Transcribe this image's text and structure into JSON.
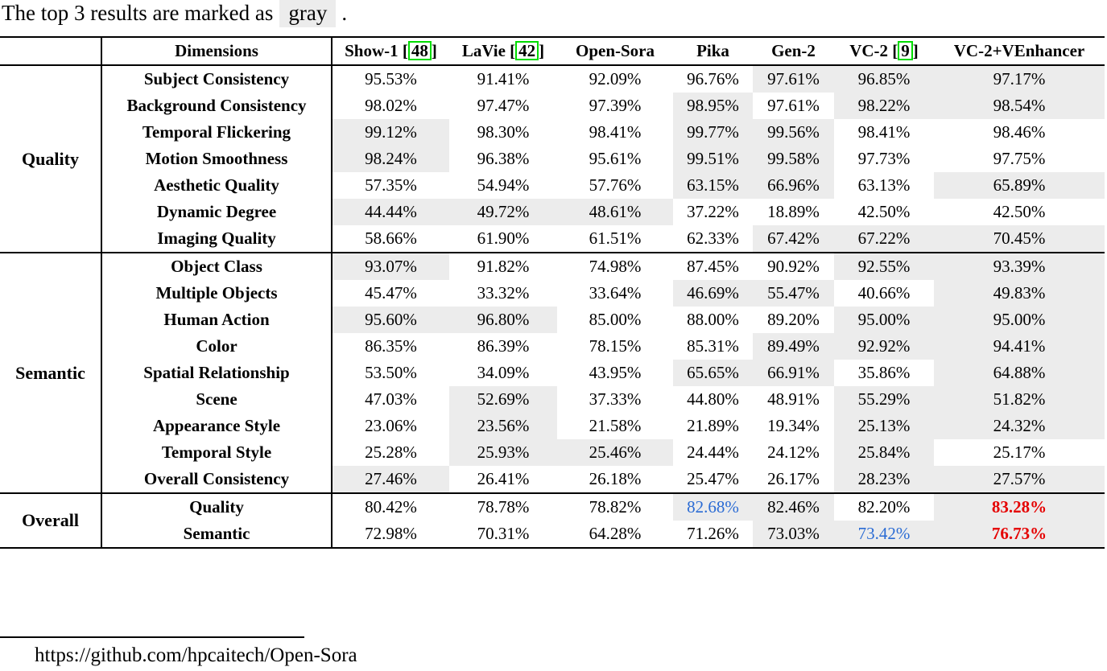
{
  "note": {
    "text": "The top 3 results are marked as",
    "highlight_word": "gray",
    "suffix": "."
  },
  "citation_format": {
    "open": "[",
    "close": "]"
  },
  "colors": {
    "highlight_gray": "#ececec",
    "best_red": "#e50000",
    "second_blue": "#2a6bd4",
    "citation_border_green": "#00dd00"
  },
  "table": {
    "header": {
      "corner": "",
      "dimensions_label": "Dimensions",
      "models": [
        {
          "label": "Show-1",
          "cite": "48"
        },
        {
          "label": "LaVie",
          "cite": "42"
        },
        {
          "label": "Open-Sora"
        },
        {
          "label": "Pika"
        },
        {
          "label": "Gen-2"
        },
        {
          "label": "VC-2",
          "cite": "9"
        },
        {
          "label": "VC-2+VEnhancer"
        }
      ]
    },
    "groups": [
      {
        "name": "Quality",
        "rows": [
          {
            "dimension": "Subject Consistency",
            "cells": [
              {
                "v": "95.53%"
              },
              {
                "v": "91.41%"
              },
              {
                "v": "92.09%"
              },
              {
                "v": "96.76%"
              },
              {
                "v": "97.61%",
                "hl": true
              },
              {
                "v": "96.85%",
                "hl": true
              },
              {
                "v": "97.17%",
                "hl": true
              }
            ]
          },
          {
            "dimension": "Background Consistency",
            "cells": [
              {
                "v": "98.02%"
              },
              {
                "v": "97.47%"
              },
              {
                "v": "97.39%"
              },
              {
                "v": "98.95%",
                "hl": true
              },
              {
                "v": "97.61%"
              },
              {
                "v": "98.22%",
                "hl": true
              },
              {
                "v": "98.54%",
                "hl": true
              }
            ]
          },
          {
            "dimension": "Temporal Flickering",
            "cells": [
              {
                "v": "99.12%",
                "hl": true
              },
              {
                "v": "98.30%"
              },
              {
                "v": "98.41%"
              },
              {
                "v": "99.77%",
                "hl": true
              },
              {
                "v": "99.56%",
                "hl": true
              },
              {
                "v": "98.41%"
              },
              {
                "v": "98.46%"
              }
            ]
          },
          {
            "dimension": "Motion Smoothness",
            "cells": [
              {
                "v": "98.24%",
                "hl": true
              },
              {
                "v": "96.38%"
              },
              {
                "v": "95.61%"
              },
              {
                "v": "99.51%",
                "hl": true
              },
              {
                "v": "99.58%",
                "hl": true
              },
              {
                "v": "97.73%"
              },
              {
                "v": "97.75%"
              }
            ]
          },
          {
            "dimension": "Aesthetic Quality",
            "cells": [
              {
                "v": "57.35%"
              },
              {
                "v": "54.94%"
              },
              {
                "v": "57.76%"
              },
              {
                "v": "63.15%",
                "hl": true
              },
              {
                "v": "66.96%",
                "hl": true
              },
              {
                "v": "63.13%"
              },
              {
                "v": "65.89%",
                "hl": true
              }
            ]
          },
          {
            "dimension": "Dynamic Degree",
            "cells": [
              {
                "v": "44.44%",
                "hl": true
              },
              {
                "v": "49.72%",
                "hl": true
              },
              {
                "v": "48.61%",
                "hl": true
              },
              {
                "v": "37.22%"
              },
              {
                "v": "18.89%"
              },
              {
                "v": "42.50%"
              },
              {
                "v": "42.50%"
              }
            ]
          },
          {
            "dimension": "Imaging Quality",
            "cells": [
              {
                "v": "58.66%"
              },
              {
                "v": "61.90%"
              },
              {
                "v": "61.51%"
              },
              {
                "v": "62.33%"
              },
              {
                "v": "67.42%",
                "hl": true
              },
              {
                "v": "67.22%",
                "hl": true
              },
              {
                "v": "70.45%",
                "hl": true
              }
            ]
          }
        ]
      },
      {
        "name": "Semantic",
        "rows": [
          {
            "dimension": "Object Class",
            "cells": [
              {
                "v": "93.07%",
                "hl": true
              },
              {
                "v": "91.82%"
              },
              {
                "v": "74.98%"
              },
              {
                "v": "87.45%"
              },
              {
                "v": "90.92%"
              },
              {
                "v": "92.55%",
                "hl": true
              },
              {
                "v": "93.39%",
                "hl": true
              }
            ]
          },
          {
            "dimension": "Multiple Objects",
            "cells": [
              {
                "v": "45.47%"
              },
              {
                "v": "33.32%"
              },
              {
                "v": "33.64%"
              },
              {
                "v": "46.69%",
                "hl": true
              },
              {
                "v": "55.47%",
                "hl": true
              },
              {
                "v": "40.66%"
              },
              {
                "v": "49.83%",
                "hl": true
              }
            ]
          },
          {
            "dimension": "Human Action",
            "cells": [
              {
                "v": "95.60%",
                "hl": true
              },
              {
                "v": "96.80%",
                "hl": true
              },
              {
                "v": "85.00%"
              },
              {
                "v": "88.00%"
              },
              {
                "v": "89.20%"
              },
              {
                "v": "95.00%",
                "hl": true
              },
              {
                "v": "95.00%",
                "hl": true
              }
            ]
          },
          {
            "dimension": "Color",
            "cells": [
              {
                "v": "86.35%"
              },
              {
                "v": "86.39%"
              },
              {
                "v": "78.15%"
              },
              {
                "v": "85.31%"
              },
              {
                "v": "89.49%",
                "hl": true
              },
              {
                "v": "92.92%",
                "hl": true
              },
              {
                "v": "94.41%",
                "hl": true
              }
            ]
          },
          {
            "dimension": "Spatial Relationship",
            "cells": [
              {
                "v": "53.50%"
              },
              {
                "v": "34.09%"
              },
              {
                "v": "43.95%"
              },
              {
                "v": "65.65%",
                "hl": true
              },
              {
                "v": "66.91%",
                "hl": true
              },
              {
                "v": "35.86%"
              },
              {
                "v": "64.88%",
                "hl": true
              }
            ]
          },
          {
            "dimension": "Scene",
            "cells": [
              {
                "v": "47.03%"
              },
              {
                "v": "52.69%",
                "hl": true
              },
              {
                "v": "37.33%"
              },
              {
                "v": "44.80%"
              },
              {
                "v": "48.91%"
              },
              {
                "v": "55.29%",
                "hl": true
              },
              {
                "v": "51.82%",
                "hl": true
              }
            ]
          },
          {
            "dimension": "Appearance Style",
            "cells": [
              {
                "v": "23.06%"
              },
              {
                "v": "23.56%",
                "hl": true
              },
              {
                "v": "21.58%"
              },
              {
                "v": "21.89%"
              },
              {
                "v": "19.34%"
              },
              {
                "v": "25.13%",
                "hl": true
              },
              {
                "v": "24.32%",
                "hl": true
              }
            ]
          },
          {
            "dimension": "Temporal Style",
            "cells": [
              {
                "v": "25.28%"
              },
              {
                "v": "25.93%",
                "hl": true
              },
              {
                "v": "25.46%",
                "hl": true
              },
              {
                "v": "24.44%"
              },
              {
                "v": "24.12%"
              },
              {
                "v": "25.84%",
                "hl": true
              },
              {
                "v": "25.17%"
              }
            ]
          },
          {
            "dimension": "Overall Consistency",
            "cells": [
              {
                "v": "27.46%",
                "hl": true
              },
              {
                "v": "26.41%"
              },
              {
                "v": "26.18%"
              },
              {
                "v": "25.47%"
              },
              {
                "v": "26.17%"
              },
              {
                "v": "28.23%",
                "hl": true
              },
              {
                "v": "27.57%",
                "hl": true
              }
            ]
          }
        ]
      },
      {
        "name": "Overall",
        "rows": [
          {
            "dimension": "Quality",
            "cells": [
              {
                "v": "80.42%"
              },
              {
                "v": "78.78%"
              },
              {
                "v": "78.82%"
              },
              {
                "v": "82.68%",
                "hl": true,
                "style": "second"
              },
              {
                "v": "82.46%",
                "hl": true
              },
              {
                "v": "82.20%"
              },
              {
                "v": "83.28%",
                "hl": true,
                "style": "best"
              }
            ]
          },
          {
            "dimension": "Semantic",
            "cells": [
              {
                "v": "72.98%"
              },
              {
                "v": "70.31%"
              },
              {
                "v": "64.28%"
              },
              {
                "v": "71.26%"
              },
              {
                "v": "73.03%",
                "hl": true
              },
              {
                "v": "73.42%",
                "hl": true,
                "style": "second"
              },
              {
                "v": "76.73%",
                "hl": true,
                "style": "best"
              }
            ]
          }
        ]
      }
    ]
  },
  "footnote": {
    "url": "https://github.com/hpcaitech/Open-Sora"
  }
}
